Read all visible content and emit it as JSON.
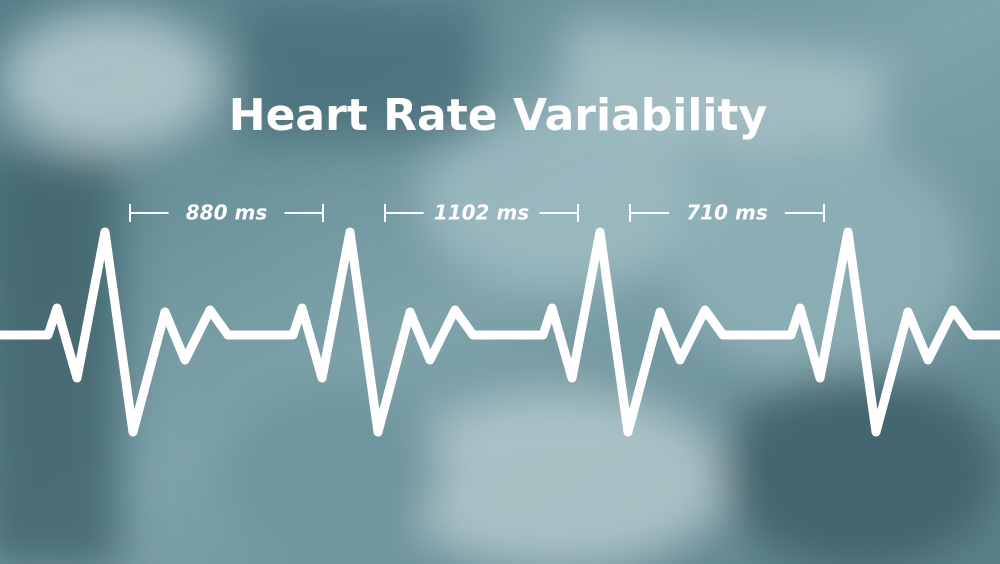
{
  "header": {
    "title": "Heart Rate Variability"
  },
  "intervals": [
    {
      "label": "880 ms"
    },
    {
      "label": "1102 ms"
    },
    {
      "label": "710 ms"
    }
  ]
}
